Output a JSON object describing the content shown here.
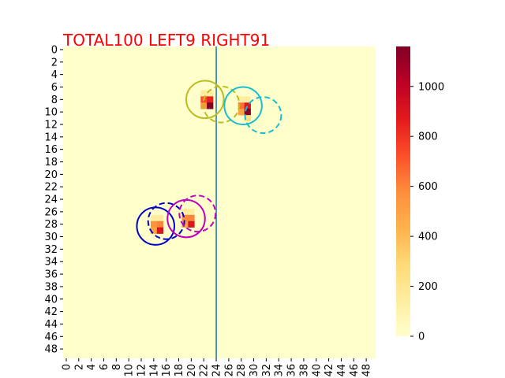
{
  "chart_data": {
    "type": "heatmap",
    "title": "TOTAL100  LEFT9 RIGHT91",
    "title_color": "#ff0000",
    "grid_size": 50,
    "x_ticks": [
      "0",
      "2",
      "4",
      "6",
      "8",
      "10",
      "12",
      "14",
      "16",
      "18",
      "20",
      "22",
      "24",
      "26",
      "28",
      "30",
      "32",
      "34",
      "36",
      "38",
      "40",
      "42",
      "44",
      "46",
      "48"
    ],
    "y_ticks": [
      "0",
      "2",
      "4",
      "6",
      "8",
      "10",
      "12",
      "14",
      "16",
      "18",
      "20",
      "22",
      "24",
      "26",
      "28",
      "30",
      "32",
      "34",
      "36",
      "38",
      "40",
      "42",
      "44",
      "46",
      "48"
    ],
    "colorbar": {
      "min": 0,
      "max": 1160,
      "ticks": [
        "0",
        "200",
        "400",
        "600",
        "800",
        "1000"
      ],
      "colormap": "YlOrRd"
    },
    "divider": {
      "x": 24.5,
      "color": "#1f77b4"
    },
    "hot_cells": [
      {
        "col": 22,
        "row": 7,
        "value": 150
      },
      {
        "col": 23,
        "row": 7,
        "value": 150
      },
      {
        "col": 22,
        "row": 8,
        "value": 720
      },
      {
        "col": 23,
        "row": 8,
        "value": 850
      },
      {
        "col": 22,
        "row": 9,
        "value": 550
      },
      {
        "col": 23,
        "row": 9,
        "value": 1160
      },
      {
        "col": 28,
        "row": 8,
        "value": 150
      },
      {
        "col": 29,
        "row": 8,
        "value": 150
      },
      {
        "col": 28,
        "row": 9,
        "value": 650
      },
      {
        "col": 29,
        "row": 9,
        "value": 900
      },
      {
        "col": 28,
        "row": 10,
        "value": 500
      },
      {
        "col": 29,
        "row": 10,
        "value": 1160
      },
      {
        "col": 29,
        "row": 11,
        "value": 250
      },
      {
        "col": 14,
        "row": 27,
        "value": 150
      },
      {
        "col": 15,
        "row": 27,
        "value": 150
      },
      {
        "col": 14,
        "row": 28,
        "value": 550
      },
      {
        "col": 15,
        "row": 28,
        "value": 600
      },
      {
        "col": 14,
        "row": 29,
        "value": 500
      },
      {
        "col": 15,
        "row": 29,
        "value": 900
      },
      {
        "col": 19,
        "row": 26,
        "value": 150
      },
      {
        "col": 20,
        "row": 26,
        "value": 150
      },
      {
        "col": 19,
        "row": 27,
        "value": 580
      },
      {
        "col": 20,
        "row": 27,
        "value": 600
      },
      {
        "col": 19,
        "row": 28,
        "value": 500
      },
      {
        "col": 20,
        "row": 28,
        "value": 900
      }
    ],
    "circles": [
      {
        "name": "olive-solid",
        "cx": 22.7,
        "cy": 8.5,
        "r": 3.0,
        "dashed": false,
        "color": "#bcbd22"
      },
      {
        "name": "olive-dashed",
        "cx": 25.3,
        "cy": 9.3,
        "r": 2.9,
        "dashed": true,
        "color": "#bcbd22"
      },
      {
        "name": "cyan-solid",
        "cx": 28.8,
        "cy": 9.5,
        "r": 3.0,
        "dashed": false,
        "color": "#17becf"
      },
      {
        "name": "cyan-dashed",
        "cx": 32.0,
        "cy": 11.0,
        "r": 2.9,
        "dashed": true,
        "color": "#17becf"
      },
      {
        "name": "blue-solid",
        "cx": 14.8,
        "cy": 28.8,
        "r": 3.0,
        "dashed": false,
        "color": "#0000cd"
      },
      {
        "name": "blue-dashed",
        "cx": 16.5,
        "cy": 28.0,
        "r": 2.9,
        "dashed": true,
        "color": "#0000cd"
      },
      {
        "name": "magenta-solid",
        "cx": 19.7,
        "cy": 27.6,
        "r": 3.0,
        "dashed": false,
        "color": "#bf00bf"
      },
      {
        "name": "magenta-dashed",
        "cx": 21.5,
        "cy": 26.8,
        "r": 2.9,
        "dashed": true,
        "color": "#bf00bf"
      }
    ]
  }
}
